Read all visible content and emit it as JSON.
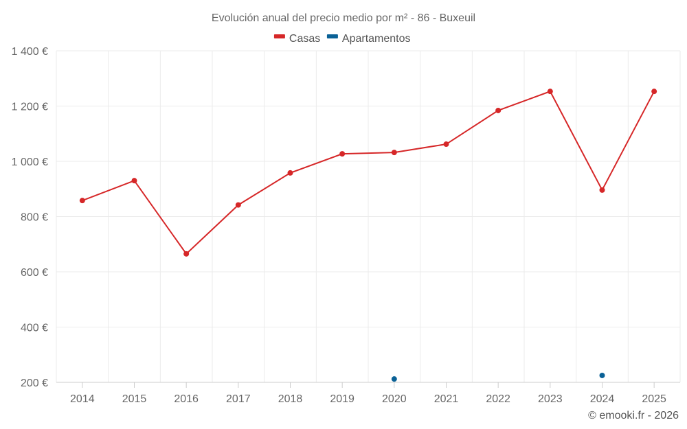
{
  "chart_data": {
    "type": "line",
    "title": "Evolución anual del precio medio por m² - 86 - Buxeuil",
    "categories": [
      "2014",
      "2015",
      "2016",
      "2017",
      "2018",
      "2019",
      "2020",
      "2021",
      "2022",
      "2023",
      "2024",
      "2025"
    ],
    "ylim": [
      200,
      1400
    ],
    "yticks": [
      200,
      400,
      600,
      800,
      1000,
      1200,
      1400
    ],
    "ytick_labels": [
      "200 €",
      "400 €",
      "600 €",
      "800 €",
      "1 000 €",
      "1 200 €",
      "1 400 €"
    ],
    "grid": true,
    "legend_position": "top-center",
    "series": [
      {
        "name": "Casas",
        "color": "#d62728",
        "values": [
          858,
          930,
          665,
          842,
          958,
          1027,
          1032,
          1062,
          1184,
          1253,
          896,
          1253
        ]
      },
      {
        "name": "Apartamentos",
        "color": "#0a6196",
        "values": [
          null,
          null,
          null,
          null,
          null,
          null,
          212,
          null,
          null,
          null,
          225,
          null
        ]
      }
    ],
    "credit": "© emooki.fr - 2026"
  }
}
